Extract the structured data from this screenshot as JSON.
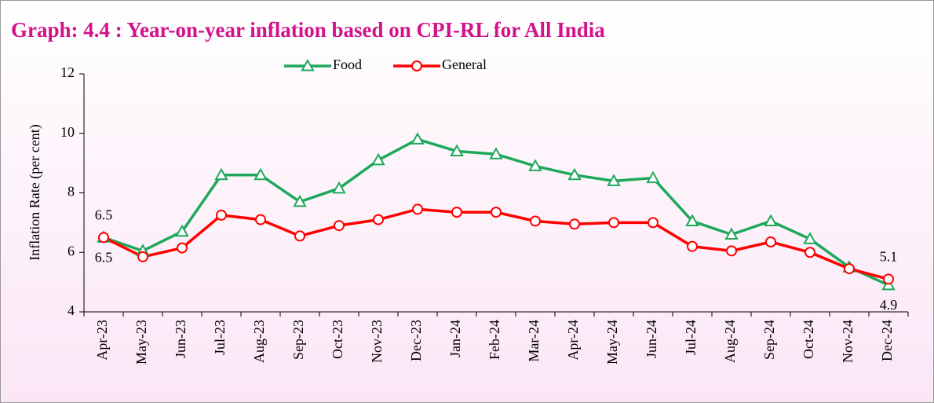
{
  "chart_data": {
    "type": "line",
    "title": "Graph: 4.4 : Year-on-year inflation based on CPI-RL for All India",
    "y_label": "Inflation Rate (per cent)",
    "categories": [
      "Apr-23",
      "May-23",
      "Jun-23",
      "Jul-23",
      "Aug-23",
      "Sep-23",
      "Oct-23",
      "Nov-23",
      "Dec-23",
      "Jan-24",
      "Feb-24",
      "Mar-24",
      "Apr-24",
      "May-24",
      "Jun-24",
      "Jul-24",
      "Aug-24",
      "Sep-24",
      "Oct-24",
      "Nov-24",
      "Dec-24"
    ],
    "series": [
      {
        "name": "Food",
        "color": "#1ea85c",
        "marker": "triangle",
        "values": [
          6.5,
          6.05,
          6.7,
          8.6,
          8.6,
          7.7,
          8.15,
          9.1,
          9.8,
          9.4,
          9.3,
          8.9,
          8.6,
          8.4,
          8.5,
          7.05,
          6.6,
          7.05,
          6.45,
          5.5,
          4.9
        ],
        "value_labels": [
          "6.5",
          null,
          null,
          null,
          null,
          null,
          null,
          null,
          null,
          null,
          null,
          null,
          null,
          null,
          null,
          null,
          null,
          null,
          null,
          null,
          "4.9"
        ]
      },
      {
        "name": "General",
        "color": "#ff0000",
        "marker": "circle",
        "values": [
          6.5,
          5.85,
          6.15,
          7.25,
          7.1,
          6.55,
          6.9,
          7.1,
          7.45,
          7.35,
          7.35,
          7.05,
          6.95,
          7.0,
          7.0,
          6.2,
          6.05,
          6.35,
          6.0,
          5.45,
          5.1
        ],
        "value_labels": [
          "6.5",
          null,
          null,
          null,
          null,
          null,
          null,
          null,
          null,
          null,
          null,
          null,
          null,
          null,
          null,
          null,
          null,
          null,
          null,
          null,
          "5.1"
        ]
      }
    ],
    "ylim": [
      4,
      12
    ],
    "yticks": [
      4,
      6,
      8,
      10,
      12
    ],
    "grid": false,
    "legend": "top"
  }
}
